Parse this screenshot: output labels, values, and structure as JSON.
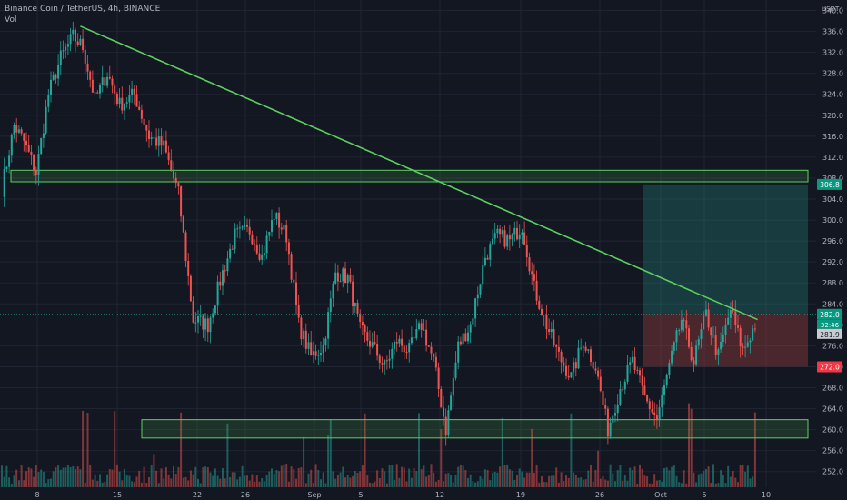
{
  "header": {
    "symbol": "Binance Coin / TetherUS, 4h, BINANCE",
    "indicator": "Vol"
  },
  "axis": {
    "currency": "USDT"
  },
  "chart_data": {
    "type": "candlestick",
    "title": "Binance Coin / TetherUS, 4h, BINANCE",
    "ylim": [
      249,
      342
    ],
    "y_ticks": [
      252,
      256,
      260,
      264,
      268,
      272,
      276,
      280,
      284,
      288,
      292,
      296,
      300,
      304,
      308,
      312,
      316,
      320,
      324,
      328,
      332,
      336,
      340
    ],
    "x_ticks": [
      "8",
      "15",
      "22",
      "26",
      "Sep",
      "5",
      "12",
      "19",
      "26",
      "Oct",
      "5",
      "10"
    ],
    "price_path": [
      [
        0,
        306
      ],
      [
        5,
        318
      ],
      [
        9,
        315
      ],
      [
        14,
        309
      ],
      [
        19,
        324
      ],
      [
        24,
        331
      ],
      [
        29,
        335
      ],
      [
        33,
        333
      ],
      [
        38,
        323
      ],
      [
        43,
        328
      ],
      [
        48,
        322
      ],
      [
        54,
        324
      ],
      [
        60,
        316
      ],
      [
        66,
        314
      ],
      [
        72,
        305
      ],
      [
        78,
        281
      ],
      [
        84,
        280
      ],
      [
        90,
        290
      ],
      [
        95,
        297
      ],
      [
        101,
        298
      ],
      [
        106,
        293
      ],
      [
        111,
        301
      ],
      [
        116,
        297
      ],
      [
        121,
        280
      ],
      [
        126,
        274
      ],
      [
        131,
        276
      ],
      [
        136,
        290
      ],
      [
        141,
        289
      ],
      [
        146,
        279
      ],
      [
        151,
        276
      ],
      [
        156,
        272
      ],
      [
        161,
        277
      ],
      [
        166,
        275
      ],
      [
        171,
        280
      ],
      [
        176,
        273
      ],
      [
        181,
        260
      ],
      [
        186,
        276
      ],
      [
        191,
        280
      ],
      [
        197,
        293
      ],
      [
        202,
        297
      ],
      [
        207,
        296
      ],
      [
        212,
        299
      ],
      [
        217,
        287
      ],
      [
        222,
        280
      ],
      [
        227,
        274
      ],
      [
        232,
        270
      ],
      [
        237,
        277
      ],
      [
        242,
        272
      ],
      [
        247,
        260
      ],
      [
        252,
        268
      ],
      [
        257,
        273
      ],
      [
        262,
        266
      ],
      [
        267,
        262
      ],
      [
        272,
        272
      ],
      [
        277,
        281
      ],
      [
        282,
        273
      ],
      [
        287,
        282
      ],
      [
        292,
        274
      ],
      [
        297,
        283
      ],
      [
        302,
        275
      ],
      [
        307,
        280
      ]
    ],
    "current_price": 282.0,
    "countdown": "32:46",
    "last_close_label": 281.9,
    "target_price": 306.8,
    "stop_price": 272.0,
    "zones": [
      {
        "low": 307.3,
        "high": 309.5,
        "color": "#4caf50"
      },
      {
        "low": 258.4,
        "high": 261.9,
        "color": "#4caf50"
      }
    ],
    "trendline": {
      "from": [
        32,
        337
      ],
      "to": [
        308,
        281
      ],
      "color": "#4caf50"
    },
    "position": {
      "entry": 282.2,
      "target": 306.8,
      "stop": 272.0,
      "profit_color": "#26a69a",
      "loss_color": "#ef5350"
    },
    "colors": {
      "up": "#26a69a",
      "down": "#ef5350",
      "background": "#131722",
      "grid": "#1f2433",
      "text": "#b2b5be"
    }
  }
}
